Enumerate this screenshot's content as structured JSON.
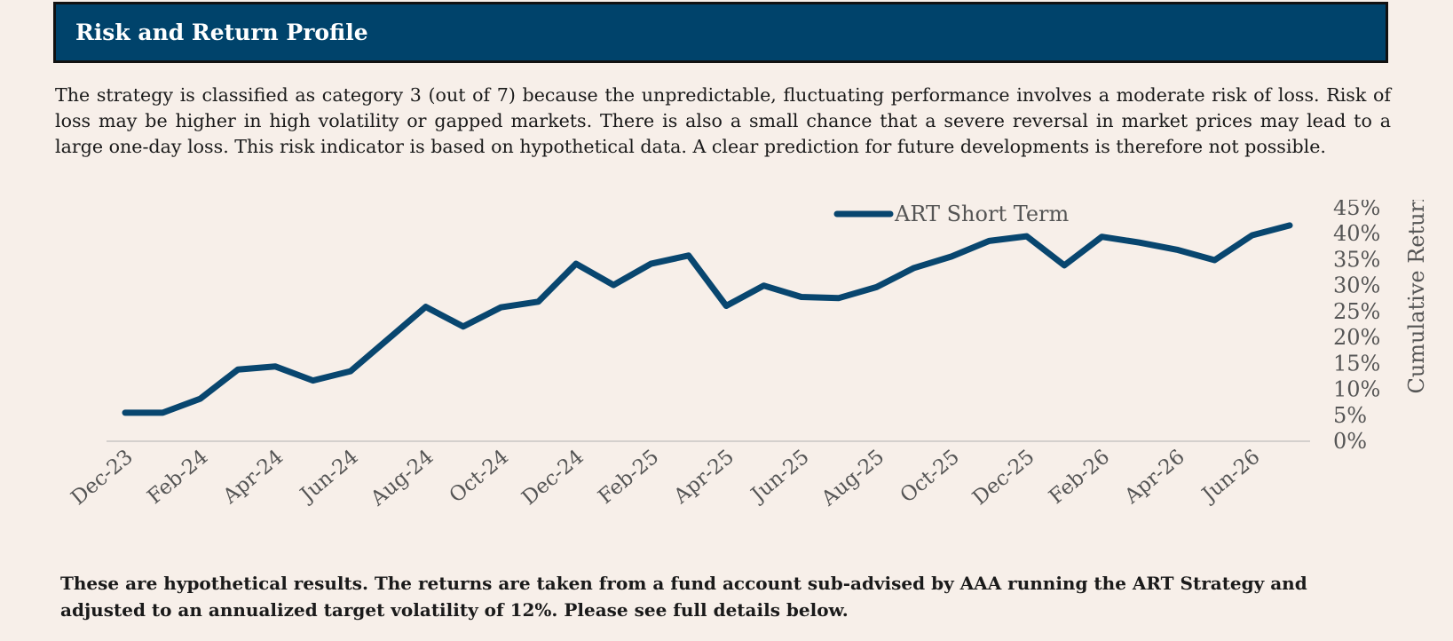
{
  "header": {
    "title": "Risk and Return Profile"
  },
  "description": "The strategy is classified as category 3 (out of 7) because the unpredictable, fluctuating performance involves a moderate risk of loss. Risk of loss may be higher in high volatility or gapped markets. There is also a small chance that a severe reversal in market prices may lead to a large one-day loss. This risk indicator is based on hypothetical data. A clear prediction for future developments is therefore not possible.",
  "footnote": "These are hypothetical results. The returns are taken from a fund account sub-advised by AAA running the ART Strategy and adjusted to an annualized target volatility of 12%. Please see full details below.",
  "colors": {
    "header_bg": "#00436b",
    "series": "#08466f",
    "axis_text": "#555555",
    "background": "#f7efe9"
  },
  "chart_data": {
    "type": "line",
    "x": [
      "Dec-23",
      "Jan-24",
      "Feb-24",
      "Mar-24",
      "Apr-24",
      "May-24",
      "Jun-24",
      "Jul-24",
      "Aug-24",
      "Sep-24",
      "Oct-24",
      "Nov-24",
      "Dec-24",
      "Jan-25",
      "Feb-25",
      "Mar-25",
      "Apr-25",
      "May-25",
      "Jun-25",
      "Jul-25",
      "Aug-25",
      "Sep-25",
      "Oct-25",
      "Nov-25",
      "Dec-25",
      "Jan-26",
      "Feb-26",
      "Mar-26",
      "Apr-26",
      "May-26",
      "Jun-26",
      "Jul-26"
    ],
    "x_tick_labels": [
      "Dec-23",
      "Feb-24",
      "Apr-24",
      "Jun-24",
      "Aug-24",
      "Oct-24",
      "Dec-24",
      "Feb-25",
      "Apr-25",
      "Jun-25",
      "Aug-25",
      "Oct-25",
      "Dec-25",
      "Feb-26",
      "Apr-26",
      "Jun-26"
    ],
    "series": [
      {
        "name": "ART Short Term",
        "values": [
          5.5,
          5.5,
          8.2,
          13.8,
          14.4,
          11.7,
          13.5,
          19.7,
          25.9,
          22.1,
          25.8,
          26.9,
          34.2,
          30.1,
          34.2,
          35.8,
          26.1,
          30.0,
          27.8,
          27.6,
          29.7,
          33.4,
          35.6,
          38.6,
          39.5,
          33.9,
          39.4,
          38.3,
          36.9,
          34.9,
          39.7,
          41.6
        ]
      }
    ],
    "ylabel": "Cumulative Return",
    "yticks": [
      "0%",
      "5%",
      "10%",
      "15%",
      "20%",
      "25%",
      "30%",
      "35%",
      "40%",
      "45%"
    ],
    "ylim": [
      0,
      45
    ],
    "legend_position": "top-center",
    "grid": false
  }
}
